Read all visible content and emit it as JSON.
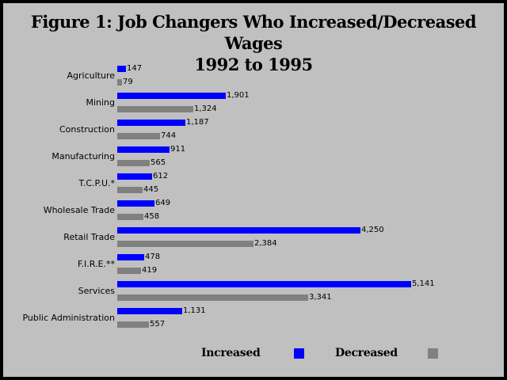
{
  "chart_data": {
    "type": "bar",
    "orientation": "horizontal",
    "title_lines": [
      "Figure 1:  Job Changers Who Increased/Decreased Wages",
      "1992 to 1995"
    ],
    "categories": [
      "Agriculture",
      "Mining",
      "Construction",
      "Manufacturing",
      "T.C.P.U.*",
      "Wholesale Trade",
      "Retail Trade",
      "F.I.R.E.**",
      "Services",
      "Public Administration"
    ],
    "series": [
      {
        "name": "Increased",
        "color": "#0000ff",
        "values": [
          147,
          1901,
          1187,
          911,
          612,
          649,
          4250,
          478,
          5141,
          1131
        ],
        "labels": [
          "147",
          "1,901",
          "1,187",
          "911",
          "612",
          "649",
          "4,250",
          "478",
          "5,141",
          "1,131"
        ]
      },
      {
        "name": "Decreased",
        "color": "#808080",
        "values": [
          79,
          1324,
          744,
          565,
          445,
          458,
          2384,
          419,
          3341,
          557
        ],
        "labels": [
          "79",
          "1,324",
          "744",
          "565",
          "445",
          "458",
          "2,384",
          "419",
          "3,341",
          "557"
        ]
      }
    ],
    "xlim": [
      0,
      5141
    ],
    "legend_position": "bottom",
    "grid": false
  }
}
